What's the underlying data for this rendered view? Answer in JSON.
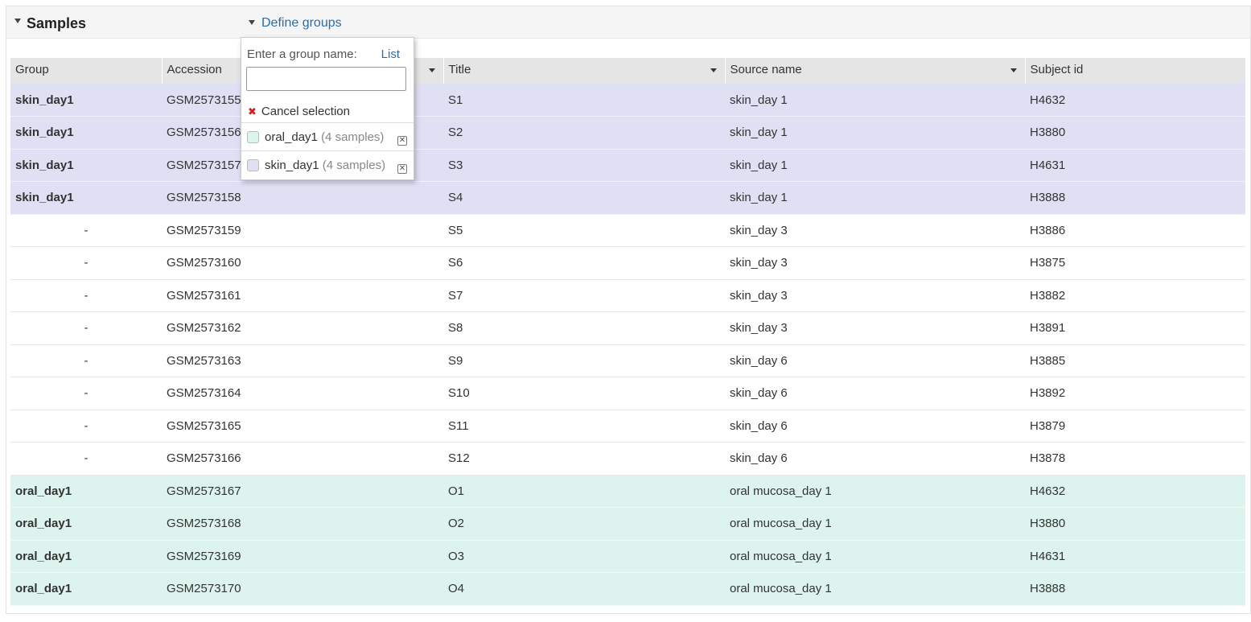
{
  "panel": {
    "title": "Samples",
    "define_groups_label": "Define groups"
  },
  "table": {
    "columns": [
      "Group",
      "Accession",
      "Title",
      "Source name",
      "Subject id"
    ],
    "rows": [
      {
        "group": "skin_day1",
        "group_class": "skin",
        "accession": "GSM2573155",
        "title": "S1",
        "source": "skin_day 1",
        "subject": "H4632"
      },
      {
        "group": "skin_day1",
        "group_class": "skin",
        "accession": "GSM2573156",
        "title": "S2",
        "source": "skin_day 1",
        "subject": "H3880"
      },
      {
        "group": "skin_day1",
        "group_class": "skin",
        "accession": "GSM2573157",
        "title": "S3",
        "source": "skin_day 1",
        "subject": "H4631"
      },
      {
        "group": "skin_day1",
        "group_class": "skin",
        "accession": "GSM2573158",
        "title": "S4",
        "source": "skin_day 1",
        "subject": "H3888"
      },
      {
        "group": "-",
        "group_class": "none",
        "accession": "GSM2573159",
        "title": "S5",
        "source": "skin_day 3",
        "subject": "H3886"
      },
      {
        "group": "-",
        "group_class": "none",
        "accession": "GSM2573160",
        "title": "S6",
        "source": "skin_day 3",
        "subject": "H3875"
      },
      {
        "group": "-",
        "group_class": "none",
        "accession": "GSM2573161",
        "title": "S7",
        "source": "skin_day 3",
        "subject": "H3882"
      },
      {
        "group": "-",
        "group_class": "none",
        "accession": "GSM2573162",
        "title": "S8",
        "source": "skin_day 3",
        "subject": "H3891"
      },
      {
        "group": "-",
        "group_class": "none",
        "accession": "GSM2573163",
        "title": "S9",
        "source": "skin_day 6",
        "subject": "H3885"
      },
      {
        "group": "-",
        "group_class": "none",
        "accession": "GSM2573164",
        "title": "S10",
        "source": "skin_day 6",
        "subject": "H3892"
      },
      {
        "group": "-",
        "group_class": "none",
        "accession": "GSM2573165",
        "title": "S11",
        "source": "skin_day 6",
        "subject": "H3879"
      },
      {
        "group": "-",
        "group_class": "none",
        "accession": "GSM2573166",
        "title": "S12",
        "source": "skin_day 6",
        "subject": "H3878"
      },
      {
        "group": "oral_day1",
        "group_class": "oral",
        "accession": "GSM2573167",
        "title": "O1",
        "source": "oral mucosa_day 1",
        "subject": "H4632"
      },
      {
        "group": "oral_day1",
        "group_class": "oral",
        "accession": "GSM2573168",
        "title": "O2",
        "source": "oral mucosa_day 1",
        "subject": "H3880"
      },
      {
        "group": "oral_day1",
        "group_class": "oral",
        "accession": "GSM2573169",
        "title": "O3",
        "source": "oral mucosa_day 1",
        "subject": "H4631"
      },
      {
        "group": "oral_day1",
        "group_class": "oral",
        "accession": "GSM2573170",
        "title": "O4",
        "source": "oral mucosa_day 1",
        "subject": "H3888"
      }
    ]
  },
  "popup": {
    "enter_label": "Enter a group name:",
    "list_label": "List",
    "input_value": "",
    "cancel_label": "Cancel selection",
    "groups": [
      {
        "name": "oral_day1",
        "count": "(4 samples)",
        "color": "#ddf4ee"
      },
      {
        "name": "skin_day1",
        "count": "(4 samples)",
        "color": "#e0e0f5"
      }
    ]
  },
  "colors": {
    "skin_group": "#e0e0f5",
    "oral_group": "#ddf4ee",
    "link": "#2e6da4"
  }
}
